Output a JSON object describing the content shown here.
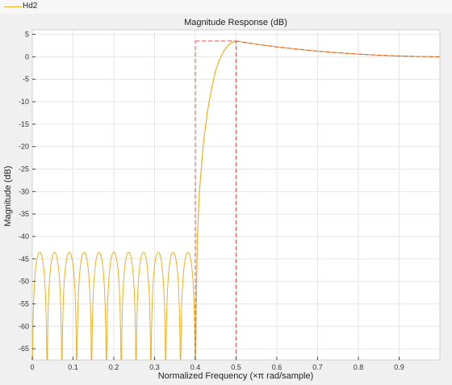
{
  "legend": {
    "entries": [
      {
        "label": "Hd2",
        "color": "#edb120"
      }
    ]
  },
  "chart_data": {
    "type": "line",
    "title": "Magnitude Response (dB)",
    "xlabel": "Normalized Frequency (×π rad/sample)",
    "ylabel": "Magnitude (dB)",
    "xlim": [
      0,
      1
    ],
    "ylim": [
      -67.5,
      6
    ],
    "xticks": [
      0,
      0.1,
      0.2,
      0.3,
      0.4,
      0.5,
      0.6,
      0.7,
      0.8,
      0.9
    ],
    "xtick_labels": [
      "0",
      "0.1",
      "0.2",
      "0.3",
      "0.4",
      "0.5",
      "0.6",
      "0.7",
      "0.8",
      "0.9"
    ],
    "yticks": [
      5,
      0,
      -5,
      -10,
      -15,
      -20,
      -25,
      -30,
      -35,
      -40,
      -45,
      -50,
      -55,
      -60,
      -65
    ],
    "ytick_labels": [
      "5",
      "0",
      "-5",
      "-10",
      "-15",
      "-20",
      "-25",
      "-30",
      "-35",
      "-40",
      "-45",
      "-50",
      "-55",
      "-60",
      "-65"
    ],
    "grid": true,
    "series": [
      {
        "name": "Hd2",
        "color": "#edb120",
        "stopband": {
          "x_range": [
            0,
            0.4
          ],
          "lobe_count": 11,
          "lobe_peak_db": -43.5
        },
        "transition": {
          "x": [
            0.4,
            0.405,
            0.41,
            0.42,
            0.43,
            0.44,
            0.45,
            0.46,
            0.47,
            0.48,
            0.49,
            0.5
          ],
          "y": [
            -67.5,
            -40,
            -30,
            -19,
            -12,
            -7,
            -3,
            -0.5,
            1.3,
            2.5,
            3.2,
            3.5
          ]
        },
        "passband": {
          "x": [
            0.5,
            0.55,
            0.6,
            0.65,
            0.7,
            0.75,
            0.8,
            0.85,
            0.9,
            0.95,
            1.0
          ],
          "y": [
            3.5,
            2.8,
            2.2,
            1.7,
            1.25,
            0.9,
            0.6,
            0.35,
            0.18,
            0.06,
            0
          ]
        }
      }
    ],
    "mask": {
      "color": "#d9534f",
      "style": "dashed",
      "stopband_edge": 0.4,
      "passband_edge": 0.5,
      "passband_level_db": 3.5,
      "passband_curve": {
        "x": [
          0.5,
          0.55,
          0.6,
          0.65,
          0.7,
          0.75,
          0.8,
          0.85,
          0.9,
          0.95,
          1.0
        ],
        "y": [
          3.5,
          2.8,
          2.2,
          1.7,
          1.25,
          0.9,
          0.6,
          0.35,
          0.18,
          0.06,
          0
        ]
      }
    }
  }
}
